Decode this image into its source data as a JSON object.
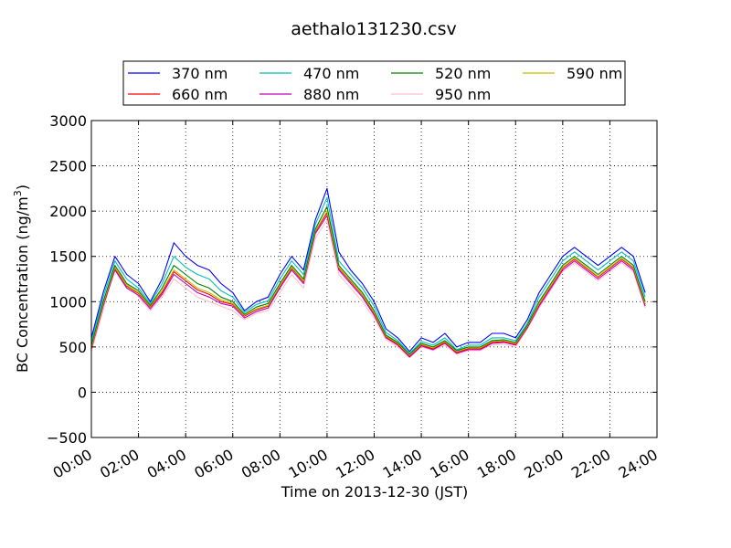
{
  "chart_data": {
    "type": "line",
    "title": "aethalo131230.csv",
    "xlabel": "Time on 2013-12-30 (JST)",
    "ylabel": "BC Concentration (ng/m",
    "ylabel_sup": "3",
    "ylabel_tail": ")",
    "xlim": [
      0,
      24
    ],
    "ylim": [
      -500,
      3000
    ],
    "x_unit": "hour",
    "x_tick_values": [
      0,
      2,
      4,
      6,
      8,
      10,
      12,
      14,
      16,
      18,
      20,
      22,
      24
    ],
    "x_ticks": [
      "00:00",
      "02:00",
      "04:00",
      "06:00",
      "08:00",
      "10:00",
      "12:00",
      "14:00",
      "16:00",
      "18:00",
      "20:00",
      "22:00",
      "24:00"
    ],
    "y_ticks": [
      -500,
      0,
      500,
      1000,
      1500,
      2000,
      2500,
      3000
    ],
    "grid": true,
    "legend_position": "top",
    "x": [
      0,
      0.5,
      1,
      1.5,
      2,
      2.5,
      3,
      3.5,
      4,
      4.5,
      5,
      5.5,
      6,
      6.5,
      7,
      7.5,
      8,
      8.5,
      9,
      9.5,
      10,
      10.5,
      11,
      11.5,
      12,
      12.5,
      13,
      13.5,
      14,
      14.5,
      15,
      15.5,
      16,
      16.5,
      17,
      17.5,
      18,
      18.5,
      19,
      19.5,
      20,
      20.5,
      21,
      21.5,
      22,
      22.5,
      23,
      23.5
    ],
    "series": [
      {
        "name": "370 nm",
        "color": "#0000ff",
        "values": [
          600,
          1100,
          1500,
          1300,
          1200,
          1000,
          1250,
          1650,
          1500,
          1400,
          1350,
          1200,
          1100,
          900,
          1000,
          1050,
          1300,
          1500,
          1350,
          1900,
          2250,
          1550,
          1350,
          1200,
          1000,
          700,
          600,
          450,
          600,
          550,
          650,
          500,
          550,
          550,
          650,
          650,
          600,
          800,
          1100,
          1300,
          1500,
          1600,
          1500,
          1400,
          1500,
          1600,
          1500,
          1100
        ]
      },
      {
        "name": "470 nm",
        "color": "#00bfbf",
        "values": [
          560,
          1050,
          1450,
          1250,
          1150,
          980,
          1200,
          1500,
          1380,
          1300,
          1250,
          1120,
          1050,
          880,
          970,
          1010,
          1250,
          1450,
          1300,
          1850,
          2150,
          1450,
          1300,
          1150,
          950,
          660,
          570,
          430,
          560,
          520,
          600,
          470,
          520,
          520,
          600,
          600,
          570,
          760,
          1050,
          1250,
          1450,
          1550,
          1450,
          1350,
          1450,
          1550,
          1450,
          1050
        ]
      },
      {
        "name": "520 nm",
        "color": "#008000",
        "values": [
          520,
          1000,
          1400,
          1200,
          1120,
          960,
          1150,
          1400,
          1300,
          1200,
          1150,
          1050,
          1000,
          860,
          940,
          980,
          1200,
          1400,
          1250,
          1800,
          2050,
          1400,
          1250,
          1100,
          900,
          630,
          550,
          420,
          540,
          500,
          570,
          460,
          500,
          500,
          570,
          580,
          550,
          740,
          1000,
          1200,
          1400,
          1500,
          1400,
          1300,
          1400,
          1500,
          1400,
          1000
        ]
      },
      {
        "name": "590 nm",
        "color": "#bfbf00",
        "values": [
          500,
          980,
          1380,
          1180,
          1100,
          950,
          1120,
          1350,
          1250,
          1150,
          1100,
          1020,
          980,
          850,
          920,
          960,
          1180,
          1380,
          1230,
          1780,
          2000,
          1380,
          1230,
          1080,
          880,
          620,
          540,
          410,
          530,
          490,
          560,
          450,
          490,
          490,
          560,
          570,
          540,
          730,
          980,
          1180,
          1380,
          1480,
          1380,
          1280,
          1380,
          1480,
          1380,
          980
        ]
      },
      {
        "name": "660 nm",
        "color": "#ff0000",
        "values": [
          490,
          970,
          1370,
          1170,
          1090,
          940,
          1100,
          1330,
          1230,
          1130,
          1080,
          1000,
          970,
          840,
          910,
          950,
          1170,
          1370,
          1220,
          1770,
          1980,
          1370,
          1220,
          1070,
          870,
          610,
          530,
          400,
          520,
          480,
          550,
          440,
          480,
          480,
          550,
          560,
          530,
          720,
          970,
          1170,
          1370,
          1470,
          1370,
          1270,
          1370,
          1470,
          1370,
          970
        ]
      },
      {
        "name": "880 nm",
        "color": "#bf00bf",
        "values": [
          480,
          950,
          1350,
          1150,
          1070,
          920,
          1080,
          1300,
          1200,
          1100,
          1050,
          980,
          950,
          820,
          890,
          930,
          1150,
          1350,
          1200,
          1750,
          1950,
          1350,
          1200,
          1050,
          850,
          600,
          520,
          390,
          510,
          470,
          540,
          430,
          470,
          470,
          540,
          550,
          520,
          710,
          950,
          1150,
          1350,
          1450,
          1350,
          1250,
          1350,
          1450,
          1350,
          950
        ]
      },
      {
        "name": "950 nm",
        "color": "#ffc0cb",
        "values": [
          450,
          900,
          1450,
          1200,
          1050,
          900,
          1050,
          1250,
          1150,
          1050,
          1000,
          950,
          900,
          800,
          870,
          900,
          1100,
          1300,
          1150,
          1700,
          1900,
          1300,
          1150,
          1000,
          820,
          580,
          500,
          380,
          500,
          460,
          520,
          420,
          460,
          460,
          520,
          530,
          500,
          700,
          930,
          1130,
          1330,
          1430,
          1330,
          1230,
          1330,
          1430,
          1330,
          930
        ]
      }
    ]
  }
}
